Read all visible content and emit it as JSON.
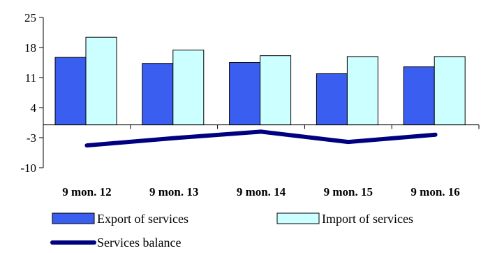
{
  "chart_data": {
    "type": "bar",
    "title": "",
    "xlabel": "",
    "ylabel": "",
    "categories": [
      "9 mon. 12",
      "9 mon. 13",
      "9 mon. 14",
      "9 mon. 15",
      "9 mon. 16"
    ],
    "y_ticks": [
      "25",
      "18",
      "11",
      "4",
      "-3",
      "-10"
    ],
    "ylim": [
      -10,
      25
    ],
    "grid": false,
    "legend_position": "bottom",
    "series": [
      {
        "name": "Export of services",
        "type": "bar",
        "color": "#3a5ef0",
        "values": [
          15.7,
          14.3,
          14.5,
          11.9,
          13.5
        ]
      },
      {
        "name": "Import of services",
        "type": "bar",
        "color": "#ccffff",
        "values": [
          20.4,
          17.4,
          16.1,
          15.9,
          15.9
        ]
      },
      {
        "name": "Services balance",
        "type": "line",
        "color": "#000080",
        "values": [
          -4.8,
          -3.1,
          -1.6,
          -4.0,
          -2.3
        ]
      }
    ]
  }
}
